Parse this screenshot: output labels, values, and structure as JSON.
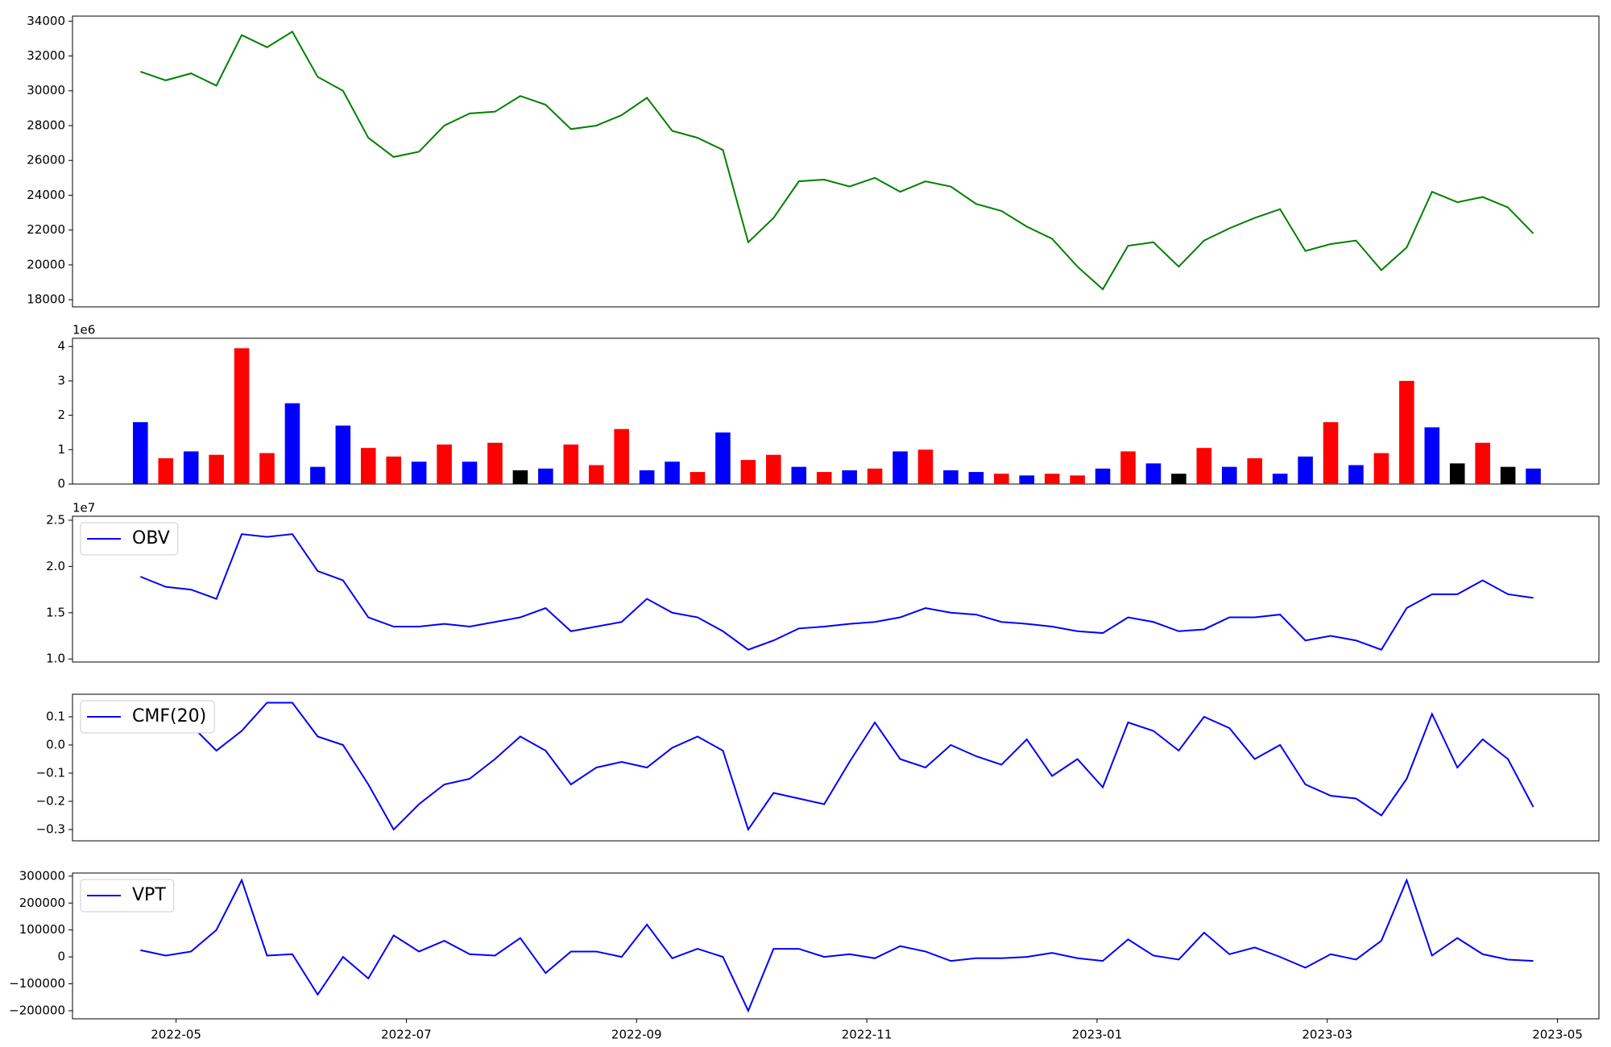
{
  "chart_data": [
    {
      "type": "line",
      "x": [
        3.69,
        3.91,
        4.13,
        4.35,
        4.57,
        4.79,
        5.01,
        5.23,
        5.45,
        5.67,
        5.89,
        6.11,
        6.33,
        6.55,
        6.77,
        6.99,
        7.21,
        7.43,
        7.65,
        7.87,
        8.09,
        8.31,
        8.53,
        8.75,
        8.97,
        9.19,
        9.41,
        9.63,
        9.85,
        10.07,
        10.29,
        10.51,
        10.73,
        10.95,
        11.17,
        11.39,
        11.61,
        11.83,
        12.05,
        12.27,
        12.49,
        12.71,
        12.93,
        13.15,
        13.37,
        13.59,
        13.81,
        14.03,
        14.25,
        14.47,
        14.69,
        14.91,
        15.13,
        15.35,
        15.57,
        15.79
      ],
      "values": [
        31100,
        30600,
        31000,
        30300,
        33200,
        32500,
        33400,
        30800,
        30000,
        27300,
        26200,
        26500,
        28000,
        28700,
        28800,
        29700,
        29200,
        27800,
        28000,
        28600,
        29600,
        27700,
        27300,
        26600,
        21300,
        22700,
        24800,
        24900,
        24500,
        25000,
        24200,
        24800,
        24500,
        23500,
        23100,
        22200,
        21500,
        19900,
        18600,
        21100,
        21300,
        19900,
        21400,
        22100,
        22700,
        23200,
        20800,
        21200,
        21400,
        19700,
        21000,
        24200,
        23600,
        23900,
        23300,
        21800
      ],
      "color": "green",
      "xlim": [
        3.1,
        16.36
      ],
      "ylim": [
        17590,
        34290
      ],
      "yticks": [
        18000,
        20000,
        22000,
        24000,
        26000,
        28000,
        30000,
        32000,
        34000
      ]
    },
    {
      "type": "bar",
      "x": [
        3.69,
        3.91,
        4.13,
        4.35,
        4.57,
        4.79,
        5.01,
        5.23,
        5.45,
        5.67,
        5.89,
        6.11,
        6.33,
        6.55,
        6.77,
        6.99,
        7.21,
        7.43,
        7.65,
        7.87,
        8.09,
        8.31,
        8.53,
        8.75,
        8.97,
        9.19,
        9.41,
        9.63,
        9.85,
        10.07,
        10.29,
        10.51,
        10.73,
        10.95,
        11.17,
        11.39,
        11.61,
        11.83,
        12.05,
        12.27,
        12.49,
        12.71,
        12.93,
        13.15,
        13.37,
        13.59,
        13.81,
        14.03,
        14.25,
        14.47,
        14.69,
        14.91,
        15.13,
        15.35,
        15.57,
        15.79
      ],
      "values": [
        1800000,
        750000,
        950000,
        850000,
        3950000,
        900000,
        2350000,
        500000,
        1700000,
        1050000,
        800000,
        650000,
        1150000,
        650000,
        1200000,
        400000,
        450000,
        1150000,
        550000,
        1600000,
        400000,
        650000,
        350000,
        1500000,
        700000,
        850000,
        500000,
        350000,
        400000,
        450000,
        950000,
        1000000,
        400000,
        350000,
        300000,
        250000,
        300000,
        250000,
        450000,
        950000,
        600000,
        300000,
        1050000,
        500000,
        750000,
        300000,
        800000,
        1800000,
        550000,
        900000,
        3000000,
        1650000,
        600000,
        1200000,
        500000,
        450000
      ],
      "colors": [
        "blue",
        "red",
        "blue",
        "red",
        "red",
        "red",
        "blue",
        "blue",
        "blue",
        "red",
        "red",
        "blue",
        "red",
        "blue",
        "red",
        "black",
        "blue",
        "red",
        "red",
        "red",
        "blue",
        "blue",
        "red",
        "blue",
        "red",
        "red",
        "blue",
        "red",
        "blue",
        "red",
        "blue",
        "red",
        "blue",
        "blue",
        "red",
        "blue",
        "red",
        "red",
        "blue",
        "red",
        "blue",
        "black",
        "red",
        "blue",
        "red",
        "blue",
        "blue",
        "red",
        "blue",
        "red",
        "red",
        "blue",
        "black",
        "red",
        "black",
        "blue"
      ],
      "offset_label": "1e6",
      "xlim": [
        3.1,
        16.36
      ],
      "ylim": [
        0,
        4240000
      ],
      "yticks": [
        0,
        {
          "value": 1000000,
          "label": "1"
        },
        {
          "value": 2000000,
          "label": "2"
        },
        {
          "value": 3000000,
          "label": "3"
        },
        {
          "value": 4000000,
          "label": "4"
        }
      ]
    },
    {
      "type": "line",
      "x": [
        3.69,
        3.91,
        4.13,
        4.35,
        4.57,
        4.79,
        5.01,
        5.23,
        5.45,
        5.67,
        5.89,
        6.11,
        6.33,
        6.55,
        6.77,
        6.99,
        7.21,
        7.43,
        7.65,
        7.87,
        8.09,
        8.31,
        8.53,
        8.75,
        8.97,
        9.19,
        9.41,
        9.63,
        9.85,
        10.07,
        10.29,
        10.51,
        10.73,
        10.95,
        11.17,
        11.39,
        11.61,
        11.83,
        12.05,
        12.27,
        12.49,
        12.71,
        12.93,
        13.15,
        13.37,
        13.59,
        13.81,
        14.03,
        14.25,
        14.47,
        14.69,
        14.91,
        15.13,
        15.35,
        15.57,
        15.79
      ],
      "series": [
        {
          "name": "OBV",
          "color": "blue",
          "values": [
            18900000,
            17800000,
            17500000,
            16500000,
            23500000,
            23200000,
            23500000,
            19500000,
            18500000,
            14500000,
            13500000,
            13500000,
            13800000,
            13500000,
            14000000,
            14500000,
            15500000,
            13000000,
            13500000,
            14000000,
            16500000,
            15000000,
            14500000,
            13000000,
            11000000,
            12000000,
            13300000,
            13500000,
            13800000,
            14000000,
            14500000,
            15500000,
            15000000,
            14800000,
            14000000,
            13800000,
            13500000,
            13000000,
            12800000,
            14500000,
            14000000,
            13000000,
            13200000,
            14500000,
            14500000,
            14800000,
            12000000,
            12500000,
            12000000,
            11000000,
            15500000,
            17000000,
            17000000,
            18500000,
            17000000,
            16600000
          ]
        }
      ],
      "legend": "upper left",
      "offset_label": "1e7",
      "xlim": [
        3.1,
        16.36
      ],
      "ylim": [
        9670000,
        25430000
      ],
      "yticks": [
        {
          "value": 10000000,
          "label": "1.0"
        },
        {
          "value": 15000000,
          "label": "1.5"
        },
        {
          "value": 20000000,
          "label": "2.0"
        },
        {
          "value": 25000000,
          "label": "2.5"
        }
      ]
    },
    {
      "type": "line",
      "x": [
        3.69,
        3.91,
        4.13,
        4.35,
        4.57,
        4.79,
        5.01,
        5.23,
        5.45,
        5.67,
        5.89,
        6.11,
        6.33,
        6.55,
        6.77,
        6.99,
        7.21,
        7.43,
        7.65,
        7.87,
        8.09,
        8.31,
        8.53,
        8.75,
        8.97,
        9.19,
        9.41,
        9.63,
        9.85,
        10.07,
        10.29,
        10.51,
        10.73,
        10.95,
        11.17,
        11.39,
        11.61,
        11.83,
        12.05,
        12.27,
        12.49,
        12.71,
        12.93,
        13.15,
        13.37,
        13.59,
        13.81,
        14.03,
        14.25,
        14.47,
        14.69,
        14.91,
        15.13,
        15.35,
        15.57,
        15.79
      ],
      "series": [
        {
          "name": "CMF(20)",
          "color": "blue",
          "values": [
            0.09,
            0.05,
            0.07,
            -0.02,
            0.05,
            0.15,
            0.15,
            0.03,
            0.0,
            -0.14,
            -0.3,
            -0.21,
            -0.14,
            -0.12,
            -0.05,
            0.03,
            -0.02,
            -0.14,
            -0.08,
            -0.06,
            -0.08,
            -0.01,
            0.03,
            -0.02,
            -0.3,
            -0.17,
            -0.19,
            -0.21,
            -0.06,
            0.08,
            -0.05,
            -0.08,
            0.0,
            -0.04,
            -0.07,
            0.02,
            -0.11,
            -0.05,
            -0.15,
            0.08,
            0.05,
            -0.02,
            0.1,
            0.06,
            -0.05,
            0.0,
            -0.14,
            -0.18,
            -0.19,
            -0.25,
            -0.12,
            0.11,
            -0.08,
            0.02,
            -0.05,
            -0.22
          ]
        }
      ],
      "legend": "upper left",
      "xlim": [
        3.1,
        16.36
      ],
      "ylim": [
        -0.34,
        0.18
      ],
      "yticks": [
        {
          "value": -0.3,
          "label": "−0.3"
        },
        {
          "value": -0.2,
          "label": "−0.2"
        },
        {
          "value": -0.1,
          "label": "−0.1"
        },
        {
          "value": 0,
          "label": "0.0"
        },
        0.1
      ]
    },
    {
      "type": "line",
      "x": [
        3.69,
        3.91,
        4.13,
        4.35,
        4.57,
        4.79,
        5.01,
        5.23,
        5.45,
        5.67,
        5.89,
        6.11,
        6.33,
        6.55,
        6.77,
        6.99,
        7.21,
        7.43,
        7.65,
        7.87,
        8.09,
        8.31,
        8.53,
        8.75,
        8.97,
        9.19,
        9.41,
        9.63,
        9.85,
        10.07,
        10.29,
        10.51,
        10.73,
        10.95,
        11.17,
        11.39,
        11.61,
        11.83,
        12.05,
        12.27,
        12.49,
        12.71,
        12.93,
        13.15,
        13.37,
        13.59,
        13.81,
        14.03,
        14.25,
        14.47,
        14.69,
        14.91,
        15.13,
        15.35,
        15.57,
        15.79
      ],
      "series": [
        {
          "name": "VPT",
          "color": "blue",
          "values": [
            25000,
            5000,
            20000,
            100000,
            285000,
            5000,
            10000,
            -140000,
            0,
            -80000,
            80000,
            20000,
            60000,
            10000,
            5000,
            70000,
            -60000,
            20000,
            20000,
            0,
            120000,
            -5000,
            30000,
            0,
            -200000,
            30000,
            30000,
            0,
            10000,
            -5000,
            40000,
            20000,
            -15000,
            -5000,
            -5000,
            0,
            15000,
            -5000,
            -15000,
            65000,
            5000,
            -10000,
            90000,
            10000,
            35000,
            0,
            -40000,
            10000,
            -10000,
            60000,
            285000,
            5000,
            70000,
            10000,
            -10000,
            -15000
          ]
        }
      ],
      "legend": "upper left",
      "xlim": [
        3.1,
        16.36
      ],
      "ylim": [
        -230000,
        311500
      ],
      "yticks": [
        {
          "value": -200000,
          "label": "−200000"
        },
        {
          "value": -100000,
          "label": "−100000"
        },
        0,
        100000,
        200000,
        300000
      ],
      "xticks": [
        {
          "value": 4,
          "label": "2022-05"
        },
        {
          "value": 6,
          "label": "2022-07"
        },
        {
          "value": 8,
          "label": "2022-09"
        },
        {
          "value": 10,
          "label": "2022-11"
        },
        {
          "value": 12,
          "label": "2023-01"
        },
        {
          "value": 14,
          "label": "2023-03"
        },
        {
          "value": 16,
          "label": "2023-05"
        }
      ]
    }
  ]
}
